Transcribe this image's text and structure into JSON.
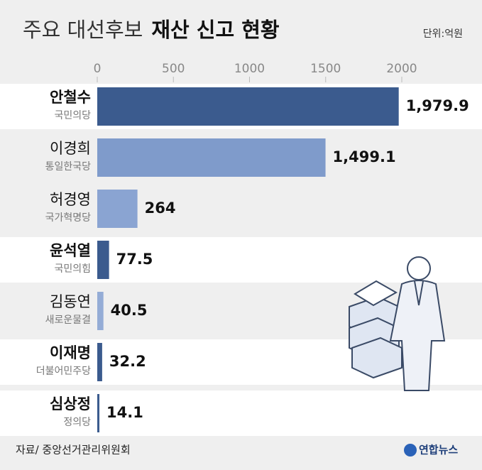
{
  "chart_data": {
    "type": "bar",
    "orientation": "horizontal",
    "title": {
      "light": "주요 대선후보",
      "bold": "재산 신고 현황"
    },
    "unit": "단위:억원",
    "categories": [
      "안철수",
      "이경희",
      "허경영",
      "윤석열",
      "김동연",
      "이재명",
      "심상정"
    ],
    "parties": [
      "국민의당",
      "통일한국당",
      "국가혁명당",
      "국민의힘",
      "새로운물결",
      "더불어민주당",
      "정의당"
    ],
    "highlight": [
      true,
      false,
      false,
      true,
      false,
      true,
      true
    ],
    "values": [
      1979.9,
      1499.1,
      264,
      77.5,
      40.5,
      32.2,
      14.1
    ],
    "value_labels": [
      "1,979.9",
      "1,499.1",
      "264",
      "77.5",
      "40.5",
      "32.2",
      "14.1"
    ],
    "colors": [
      "#3b5b8e",
      "#7f9bcb",
      "#8aa4d2",
      "#3b5b8e",
      "#94acd6",
      "#3b5b8e",
      "#3b5b8e"
    ],
    "xlim": [
      0,
      2000
    ],
    "xticks": [
      0,
      500,
      1000,
      1500,
      2000
    ],
    "source": "자료/ 중앙선거관리위원회",
    "credit": "연합뉴스"
  }
}
